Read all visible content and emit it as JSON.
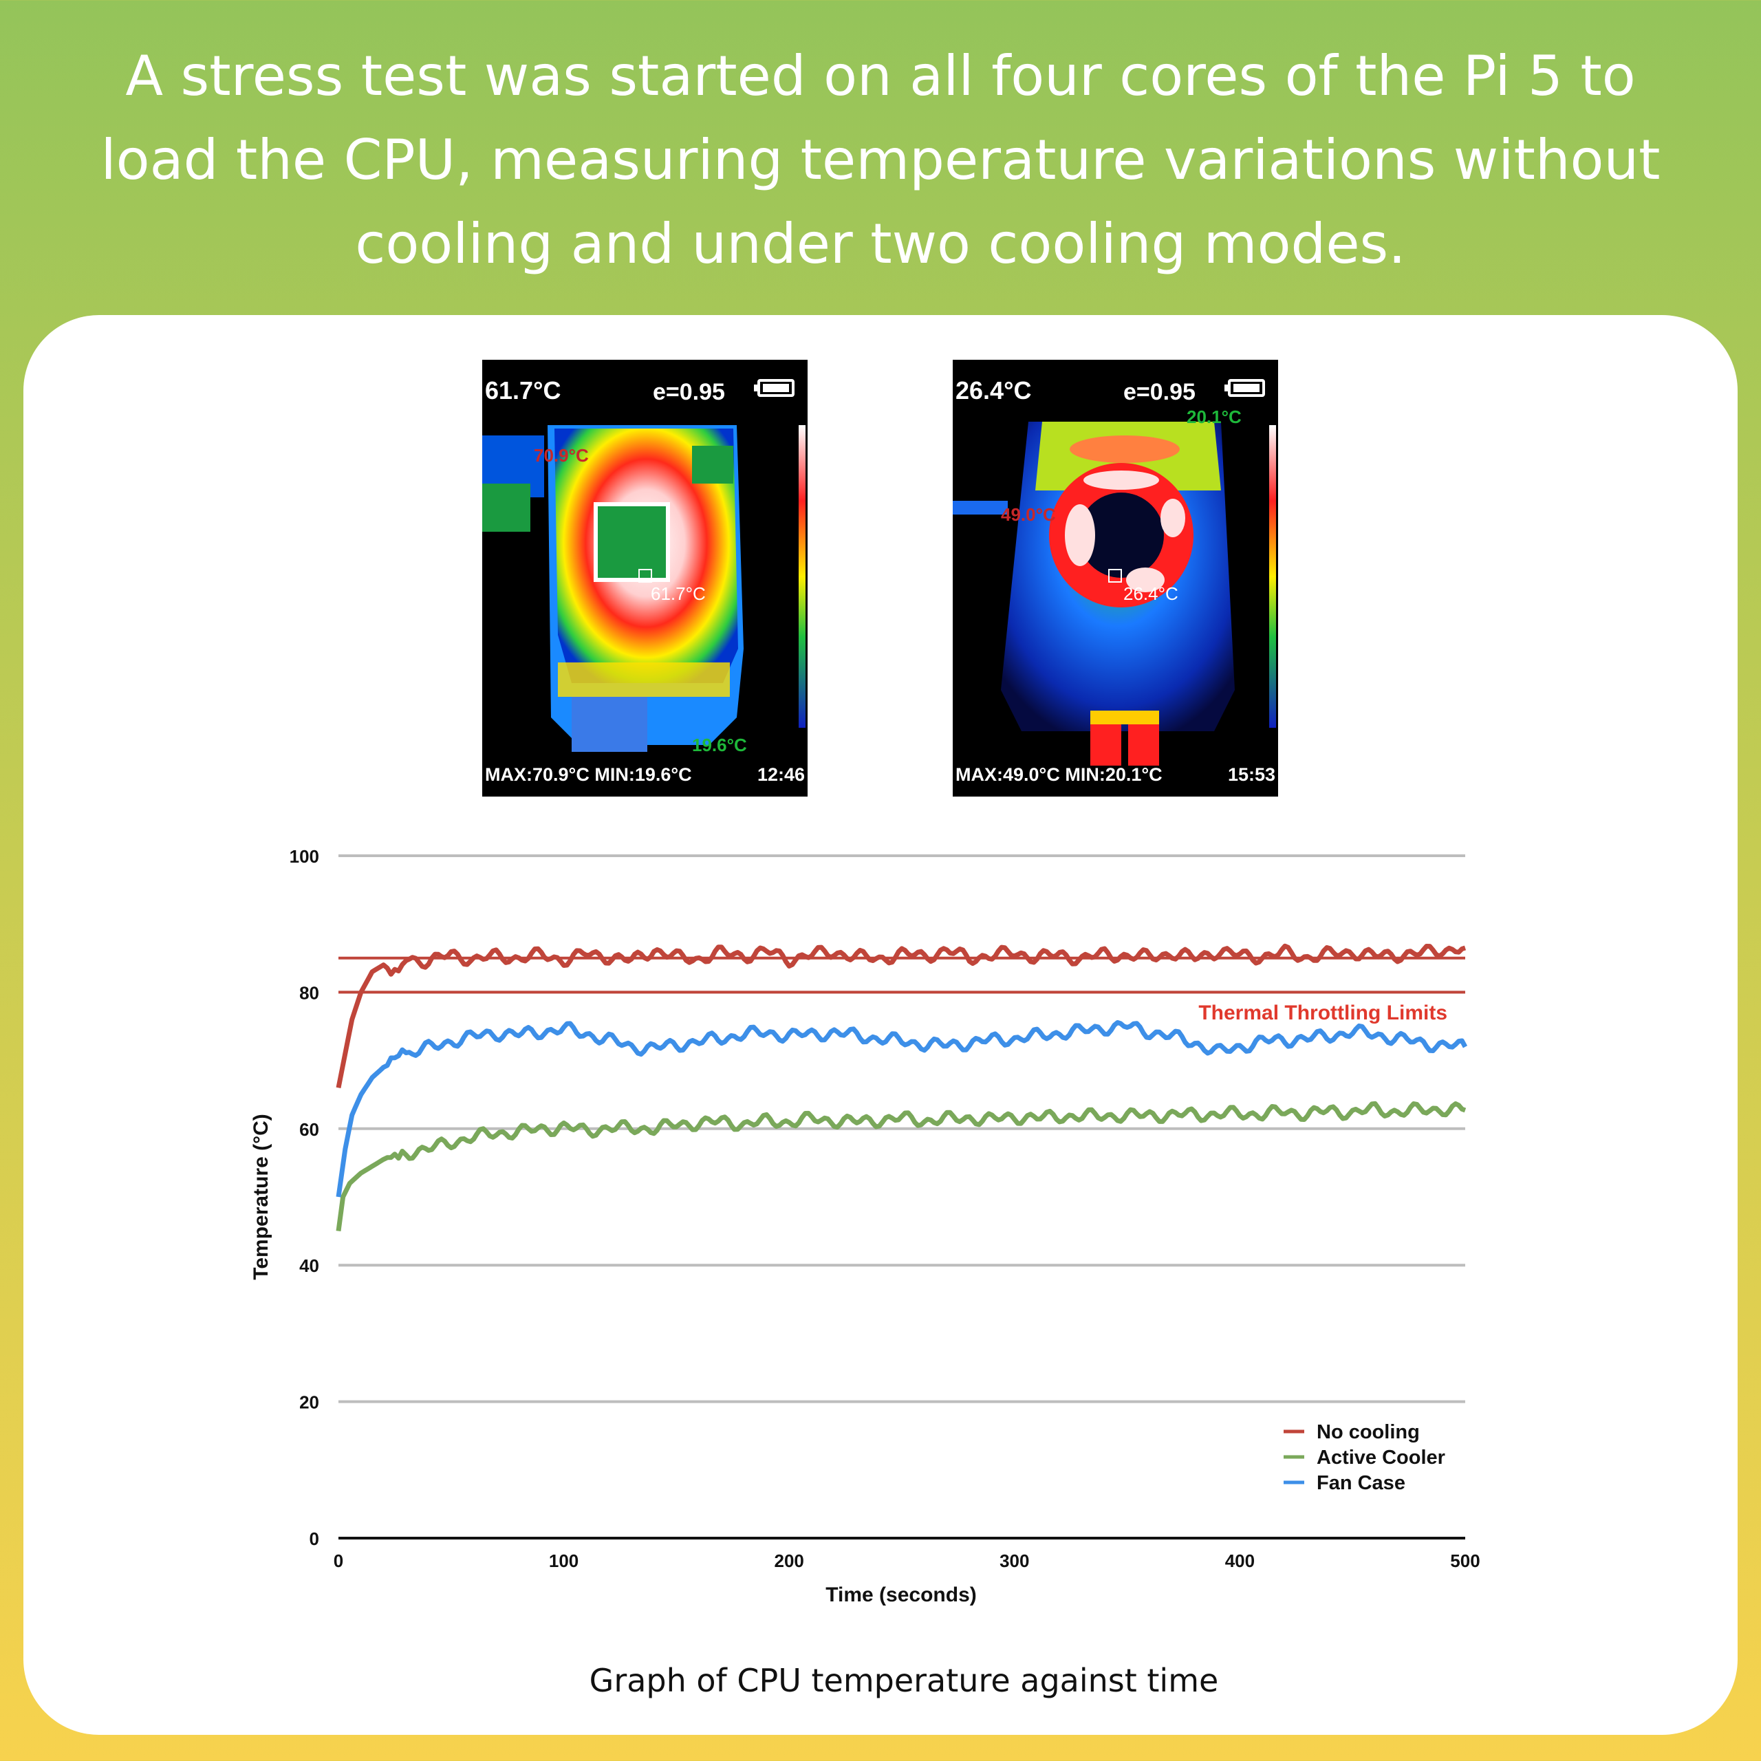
{
  "headline": "A  stress test was started on all four cores of the Pi 5 to load the CPU,  measuring temperature variations without cooling and under two cooling modes.",
  "thermal_images": [
    {
      "reading": "61.7°C",
      "emissivity": "e=0.95",
      "stats": "MAX:70.9°C   MIN:19.6°C",
      "time": "12:46",
      "hot_label": "70.9°C",
      "cold_label": "19.6°C",
      "center_label": "61.7°C",
      "icon": "battery-icon"
    },
    {
      "reading": "26.4°C",
      "emissivity": "e=0.95",
      "stats": "MAX:49.0°C   MIN:20.1°C",
      "time": "15:53",
      "hot_label": "49.0°C",
      "cold_label": "20.1°C",
      "center_label": "26.4°C",
      "icon": "battery-icon"
    }
  ],
  "chart_data": {
    "type": "line",
    "title": "",
    "xlabel": "Time (seconds)",
    "ylabel": "Temperature (°C)",
    "xlim": [
      0,
      500
    ],
    "ylim": [
      0,
      100
    ],
    "x_ticks": [
      0,
      100,
      200,
      300,
      400,
      500
    ],
    "y_ticks": [
      0,
      20,
      40,
      60,
      80,
      100
    ],
    "grid": true,
    "legend_position": "bottom-right",
    "series": [
      {
        "name": "No cooling",
        "color": "#c0453a",
        "x": [
          0,
          3,
          6,
          10,
          15,
          20,
          25,
          30,
          40,
          50,
          60,
          70,
          80,
          90,
          100,
          110,
          120,
          130,
          140,
          150,
          160,
          170,
          180,
          190,
          200,
          210,
          220,
          230,
          240,
          250,
          260,
          270,
          280,
          290,
          300,
          310,
          320,
          330,
          340,
          350,
          360,
          370,
          380,
          390,
          400,
          410,
          420,
          430,
          440,
          450,
          460,
          470,
          480,
          490,
          500
        ],
        "y": [
          66,
          71,
          76,
          80,
          83,
          84,
          83.5,
          85,
          84.5,
          85.5,
          84.8,
          85.3,
          85,
          85.5,
          84.7,
          85.6,
          85.2,
          84.6,
          86.2,
          85.1,
          84.9,
          85.8,
          85.3,
          86,
          84.8,
          85.5,
          85.9,
          85.2,
          84.9,
          85.6,
          85.3,
          86.1,
          85,
          85.4,
          85.8,
          85.1,
          85.5,
          84.9,
          85.6,
          85.3,
          85.2,
          85.7,
          85,
          86,
          85.4,
          85.2,
          85.8,
          85.1,
          85.6,
          85.9,
          85.3,
          85.5,
          85.7,
          86.2,
          86.5
        ]
      },
      {
        "name": "Active Cooler",
        "color": "#7aa85a",
        "x": [
          0,
          2,
          5,
          10,
          15,
          20,
          25,
          30,
          40,
          50,
          60,
          70,
          80,
          90,
          100,
          110,
          120,
          130,
          140,
          150,
          160,
          170,
          180,
          190,
          200,
          210,
          220,
          230,
          240,
          250,
          260,
          270,
          280,
          290,
          300,
          310,
          320,
          330,
          340,
          350,
          360,
          370,
          380,
          390,
          400,
          410,
          420,
          430,
          440,
          450,
          460,
          470,
          480,
          490,
          500
        ],
        "y": [
          45,
          50,
          52,
          53.5,
          54.5,
          55.5,
          55.8,
          56.5,
          57,
          58,
          58.8,
          59.3,
          59.6,
          59.9,
          60.3,
          59.6,
          60.2,
          60,
          60.1,
          60.5,
          60.9,
          61,
          60.7,
          61.1,
          61,
          61.4,
          61.2,
          61,
          61.3,
          61.5,
          61.2,
          61.4,
          61.6,
          61.3,
          61.8,
          61.5,
          61.9,
          61.7,
          62,
          61.8,
          62.1,
          61.9,
          62.2,
          62,
          62.3,
          62.1,
          62.5,
          62.2,
          62.6,
          62.4,
          62.8,
          62.5,
          62.7,
          62.9,
          62.7
        ]
      },
      {
        "name": "Fan Case",
        "color": "#3d8fe8",
        "x": [
          0,
          3,
          6,
          10,
          15,
          20,
          25,
          30,
          40,
          50,
          60,
          70,
          80,
          90,
          100,
          110,
          120,
          130,
          140,
          150,
          160,
          170,
          180,
          190,
          200,
          210,
          220,
          230,
          240,
          250,
          260,
          270,
          280,
          290,
          300,
          310,
          320,
          330,
          340,
          350,
          360,
          370,
          380,
          390,
          400,
          410,
          420,
          430,
          440,
          450,
          460,
          470,
          480,
          490,
          500
        ],
        "y": [
          50,
          57,
          62,
          65,
          67.5,
          69,
          70,
          71,
          71.8,
          72.8,
          73.5,
          74,
          73.8,
          74.2,
          74.6,
          73.9,
          73,
          72,
          71.8,
          72.3,
          72.8,
          73.2,
          73.9,
          74,
          73.7,
          73.8,
          74.1,
          73.6,
          73.2,
          72.8,
          72.4,
          72.2,
          72.6,
          73,
          73.2,
          73.6,
          74,
          74.3,
          74.8,
          75,
          74.2,
          73.5,
          72.6,
          71.2,
          72,
          72.8,
          73,
          73.2,
          73.6,
          74.2,
          73.8,
          73.2,
          72.6,
          72.2,
          72
        ]
      }
    ],
    "reference_lines": [
      {
        "y": 85,
        "color": "#c0453a"
      },
      {
        "y": 80,
        "color": "#c0453a",
        "label": "Thermal Throttling Limits"
      }
    ],
    "caption": "Graph of CPU temperature against time"
  }
}
